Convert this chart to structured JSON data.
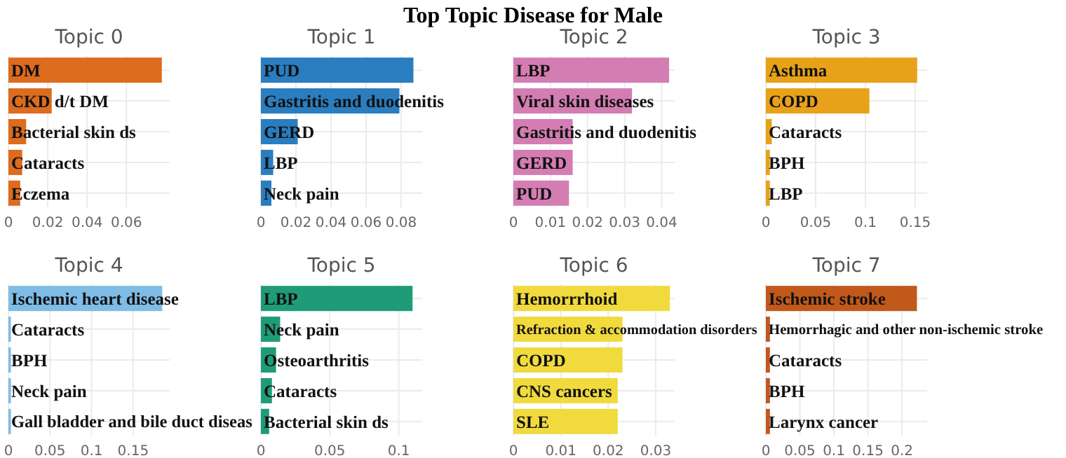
{
  "chart_data": [
    {
      "type": "bar",
      "orientation": "horizontal",
      "title": "Topic 0",
      "annotations": [
        "Top Topic Disease for Male"
      ],
      "categories": [
        "DM",
        "CKD d/t DM",
        "Bacterial skin ds",
        "Cataracts",
        "Eczema"
      ],
      "values": [
        0.078,
        0.022,
        0.009,
        0.007,
        0.006
      ],
      "color": "#dd6c1e",
      "xlim": [
        0,
        0.082
      ],
      "xticks": [
        0,
        0.02,
        0.04,
        0.06
      ],
      "grid": true
    },
    {
      "type": "bar",
      "orientation": "horizontal",
      "title": "Topic 1",
      "categories": [
        "PUD",
        "Gastritis and duodenitis",
        "GERD",
        "LBP",
        "Neck pain"
      ],
      "values": [
        0.087,
        0.079,
        0.021,
        0.007,
        0.006
      ],
      "color": "#2a7dbf",
      "xlim": [
        0,
        0.092
      ],
      "xticks": [
        0,
        0.02,
        0.04,
        0.06,
        0.08
      ],
      "grid": true
    },
    {
      "type": "bar",
      "orientation": "horizontal",
      "title": "Topic 2",
      "categories": [
        "LBP",
        "Viral skin diseases",
        "Gastritis and duodenitis",
        "GERD",
        "PUD"
      ],
      "values": [
        0.042,
        0.032,
        0.016,
        0.016,
        0.015
      ],
      "color": "#d37db3",
      "xlim": [
        0,
        0.0435
      ],
      "xticks": [
        0,
        0.01,
        0.02,
        0.03,
        0.04
      ],
      "grid": true
    },
    {
      "type": "bar",
      "orientation": "horizontal",
      "title": "Topic 3",
      "categories": [
        "Asthma",
        "COPD",
        "Cataracts",
        "BPH",
        "LBP"
      ],
      "values": [
        0.152,
        0.104,
        0.006,
        0.004,
        0.004
      ],
      "color": "#e8a21a",
      "xlim": [
        0,
        0.162
      ],
      "xticks": [
        0,
        0.05,
        0.1,
        0.15
      ],
      "grid": true
    },
    {
      "type": "bar",
      "orientation": "horizontal",
      "title": "Topic 4",
      "categories": [
        "Ischemic heart disease",
        "Cataracts",
        "BPH",
        "Neck pain",
        "Gall bladder and bile duct diseas"
      ],
      "values": [
        0.185,
        0.003,
        0.003,
        0.003,
        0.003
      ],
      "color": "#7fbce6",
      "xlim": [
        0,
        0.194
      ],
      "xticks": [
        0,
        0.05,
        0.1,
        0.15
      ],
      "grid": true
    },
    {
      "type": "bar",
      "orientation": "horizontal",
      "title": "Topic 5",
      "categories": [
        "LBP",
        "Neck pain",
        "Osteoarthritis",
        "Cataracts",
        "Bacterial skin ds"
      ],
      "values": [
        0.11,
        0.014,
        0.011,
        0.008,
        0.006
      ],
      "color": "#1f9c77",
      "xlim": [
        0,
        0.117
      ],
      "xticks": [
        0,
        0.05,
        0.1
      ],
      "grid": true
    },
    {
      "type": "bar",
      "orientation": "horizontal",
      "title": "Topic 6",
      "categories": [
        "Hemorrrhoid",
        "Refraction & accommodation disorders",
        "COPD",
        "CNS cancers",
        "SLE"
      ],
      "values": [
        0.033,
        0.023,
        0.023,
        0.022,
        0.022
      ],
      "color": "#f0da3e",
      "xlim": [
        0,
        0.034
      ],
      "xticks": [
        0,
        0.01,
        0.02,
        0.03
      ],
      "grid": true
    },
    {
      "type": "bar",
      "orientation": "horizontal",
      "title": "Topic 7",
      "categories": [
        "Ischemic stroke",
        "Hemorrhagic and other non-ischemic stroke",
        "Cataracts",
        "BPH",
        "Larynx cancer"
      ],
      "values": [
        0.222,
        0.006,
        0.006,
        0.006,
        0.006
      ],
      "color": "#c1591b",
      "xlim": [
        0,
        0.237
      ],
      "xticks": [
        0,
        0.05,
        0.1,
        0.15,
        0.2
      ],
      "grid": true
    }
  ]
}
